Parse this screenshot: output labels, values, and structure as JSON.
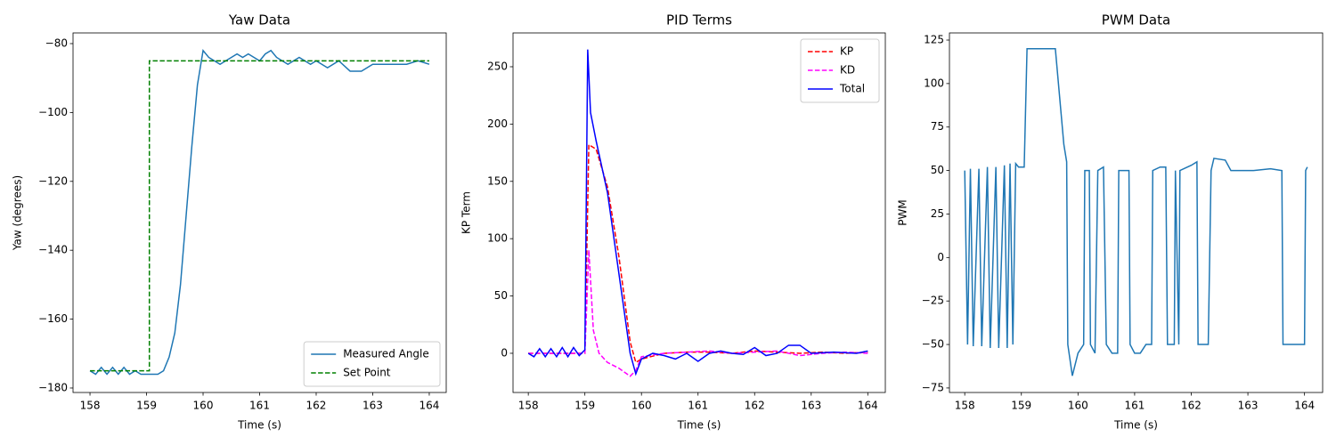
{
  "chart_data": [
    {
      "type": "line",
      "title": "Yaw Data",
      "xlabel": "Time (s)",
      "ylabel": "Yaw (degrees)",
      "xlim": [
        157.7,
        164.3
      ],
      "ylim": [
        -181.3,
        -76.9
      ],
      "xticks": [
        158,
        159,
        160,
        161,
        162,
        163,
        164
      ],
      "yticks": [
        {
          "value": -180,
          "label": "−180"
        },
        {
          "value": -160,
          "label": "−160"
        },
        {
          "value": -140,
          "label": "−140"
        },
        {
          "value": -120,
          "label": "−120"
        },
        {
          "value": -100,
          "label": "−100"
        },
        {
          "value": -80,
          "label": "−80"
        }
      ],
      "legend": "lower right",
      "series": [
        {
          "name": "Measured Angle",
          "color": "#1f77b4",
          "linestyle": "solid",
          "x": [
            158.0,
            158.1,
            158.2,
            158.3,
            158.4,
            158.5,
            158.6,
            158.7,
            158.8,
            158.9,
            159.0,
            159.1,
            159.2,
            159.3,
            159.4,
            159.5,
            159.6,
            159.7,
            159.8,
            159.9,
            160.0,
            160.1,
            160.2,
            160.3,
            160.4,
            160.5,
            160.6,
            160.7,
            160.8,
            160.9,
            161.0,
            161.1,
            161.2,
            161.3,
            161.4,
            161.5,
            161.6,
            161.7,
            161.8,
            161.9,
            162.0,
            162.2,
            162.4,
            162.6,
            162.8,
            163.0,
            163.2,
            163.4,
            163.6,
            163.8,
            164.0
          ],
          "values": [
            -175,
            -176,
            -174,
            -176,
            -174,
            -176,
            -174,
            -176,
            -175,
            -176,
            -176,
            -176,
            -176,
            -175,
            -171,
            -164,
            -150,
            -130,
            -110,
            -92,
            -82,
            -84,
            -85,
            -86,
            -85,
            -84,
            -83,
            -84,
            -83,
            -84,
            -85,
            -83,
            -82,
            -84,
            -85,
            -86,
            -85,
            -84,
            -85,
            -86,
            -85,
            -87,
            -85,
            -88,
            -88,
            -86,
            -86,
            -86,
            -86,
            -85,
            -86
          ]
        },
        {
          "name": "Set Point",
          "color": "#008000",
          "linestyle": "dashed",
          "x": [
            158.0,
            159.05,
            159.05,
            164.0
          ],
          "values": [
            -175,
            -175,
            -85,
            -85
          ]
        }
      ]
    },
    {
      "type": "line",
      "title": "PID Terms",
      "xlabel": "Time (s)",
      "ylabel": "KP Term",
      "xlim": [
        157.73,
        164.31
      ],
      "ylim": [
        -34.2,
        279.5
      ],
      "xticks": [
        158,
        159,
        160,
        161,
        162,
        163,
        164
      ],
      "yticks": [
        0,
        50,
        100,
        150,
        200,
        250
      ],
      "legend": "upper right",
      "series": [
        {
          "name": "KP",
          "color": "#ff0000",
          "linestyle": "dashed",
          "x": [
            158.0,
            158.5,
            159.0,
            159.07,
            159.2,
            159.4,
            159.6,
            159.8,
            159.9,
            160.0,
            160.4,
            160.8,
            161.2,
            161.6,
            162.0,
            162.4,
            162.8,
            163.2,
            163.6,
            164.0
          ],
          "values": [
            0,
            0,
            0,
            182,
            178,
            145,
            85,
            10,
            -8,
            -5,
            0,
            1,
            1,
            0,
            2,
            1,
            0,
            1,
            0,
            1
          ]
        },
        {
          "name": "KD",
          "color": "#ff00ff",
          "linestyle": "dashed",
          "x": [
            158.0,
            158.5,
            159.0,
            159.07,
            159.15,
            159.25,
            159.4,
            159.6,
            159.8,
            159.9,
            160.0,
            160.4,
            160.8,
            161.2,
            161.6,
            162.0,
            162.4,
            162.8,
            163.2,
            163.6,
            164.0
          ],
          "values": [
            0,
            0,
            0,
            90,
            20,
            0,
            -8,
            -13,
            -20,
            -15,
            -3,
            0,
            1,
            2,
            0,
            1,
            2,
            -2,
            0,
            1,
            0
          ]
        },
        {
          "name": "Total",
          "color": "#0000ff",
          "linestyle": "solid",
          "x": [
            158.0,
            158.1,
            158.2,
            158.3,
            158.4,
            158.5,
            158.6,
            158.7,
            158.8,
            158.9,
            159.0,
            159.05,
            159.1,
            159.2,
            159.4,
            159.6,
            159.8,
            159.9,
            160.0,
            160.2,
            160.4,
            160.6,
            160.8,
            161.0,
            161.2,
            161.4,
            161.6,
            161.8,
            162.0,
            162.2,
            162.4,
            162.6,
            162.8,
            163.0,
            163.4,
            163.8,
            164.0
          ],
          "values": [
            0,
            -3,
            4,
            -3,
            4,
            -3,
            5,
            -3,
            5,
            -2,
            3,
            265,
            210,
            185,
            140,
            70,
            0,
            -18,
            -5,
            0,
            -2,
            -5,
            0,
            -7,
            0,
            2,
            0,
            -1,
            5,
            -2,
            0,
            7,
            7,
            0,
            1,
            0,
            2
          ]
        }
      ]
    },
    {
      "type": "line",
      "title": "PWM Data",
      "xlabel": "Time (s)",
      "ylabel": "PWM",
      "xlim": [
        157.73,
        164.32
      ],
      "ylim": [
        -77.6,
        129.1
      ],
      "xticks": [
        158,
        159,
        160,
        161,
        162,
        163,
        164
      ],
      "yticks": [
        {
          "value": -75,
          "label": "−75"
        },
        {
          "value": -50,
          "label": "−50"
        },
        {
          "value": -25,
          "label": "−25"
        },
        0,
        25,
        50,
        75,
        100,
        125
      ],
      "series": [
        {
          "color": "#1f77b4",
          "linestyle": "solid",
          "x": [
            158.0,
            158.05,
            158.1,
            158.15,
            158.25,
            158.3,
            158.4,
            158.45,
            158.55,
            158.6,
            158.7,
            158.75,
            158.8,
            158.85,
            158.9,
            158.95,
            159.05,
            159.1,
            159.6,
            159.75,
            159.8,
            159.82,
            159.9,
            160.0,
            160.1,
            160.12,
            160.2,
            160.22,
            160.3,
            160.35,
            160.45,
            160.5,
            160.6,
            160.7,
            160.72,
            160.9,
            160.92,
            161.0,
            161.1,
            161.2,
            161.3,
            161.32,
            161.45,
            161.55,
            161.58,
            161.7,
            161.72,
            161.78,
            161.8,
            162.0,
            162.1,
            162.12,
            162.3,
            162.35,
            162.4,
            162.6,
            162.7,
            163.1,
            163.4,
            163.6,
            163.62,
            164.0,
            164.02,
            164.05
          ],
          "values": [
            50,
            -50,
            51,
            -51,
            51,
            -51,
            52,
            -52,
            52,
            -52,
            53,
            -52,
            54,
            -50,
            54,
            52,
            52,
            120,
            120,
            65,
            55,
            -50,
            -68,
            -55,
            -50,
            50,
            50,
            -50,
            -55,
            50,
            52,
            -50,
            -55,
            -55,
            50,
            50,
            -50,
            -55,
            -55,
            -50,
            -50,
            50,
            52,
            52,
            -50,
            -50,
            50,
            -50,
            50,
            53,
            55,
            -50,
            -50,
            50,
            57,
            56,
            50,
            50,
            51,
            50,
            -50,
            -50,
            50,
            52
          ]
        }
      ]
    }
  ]
}
